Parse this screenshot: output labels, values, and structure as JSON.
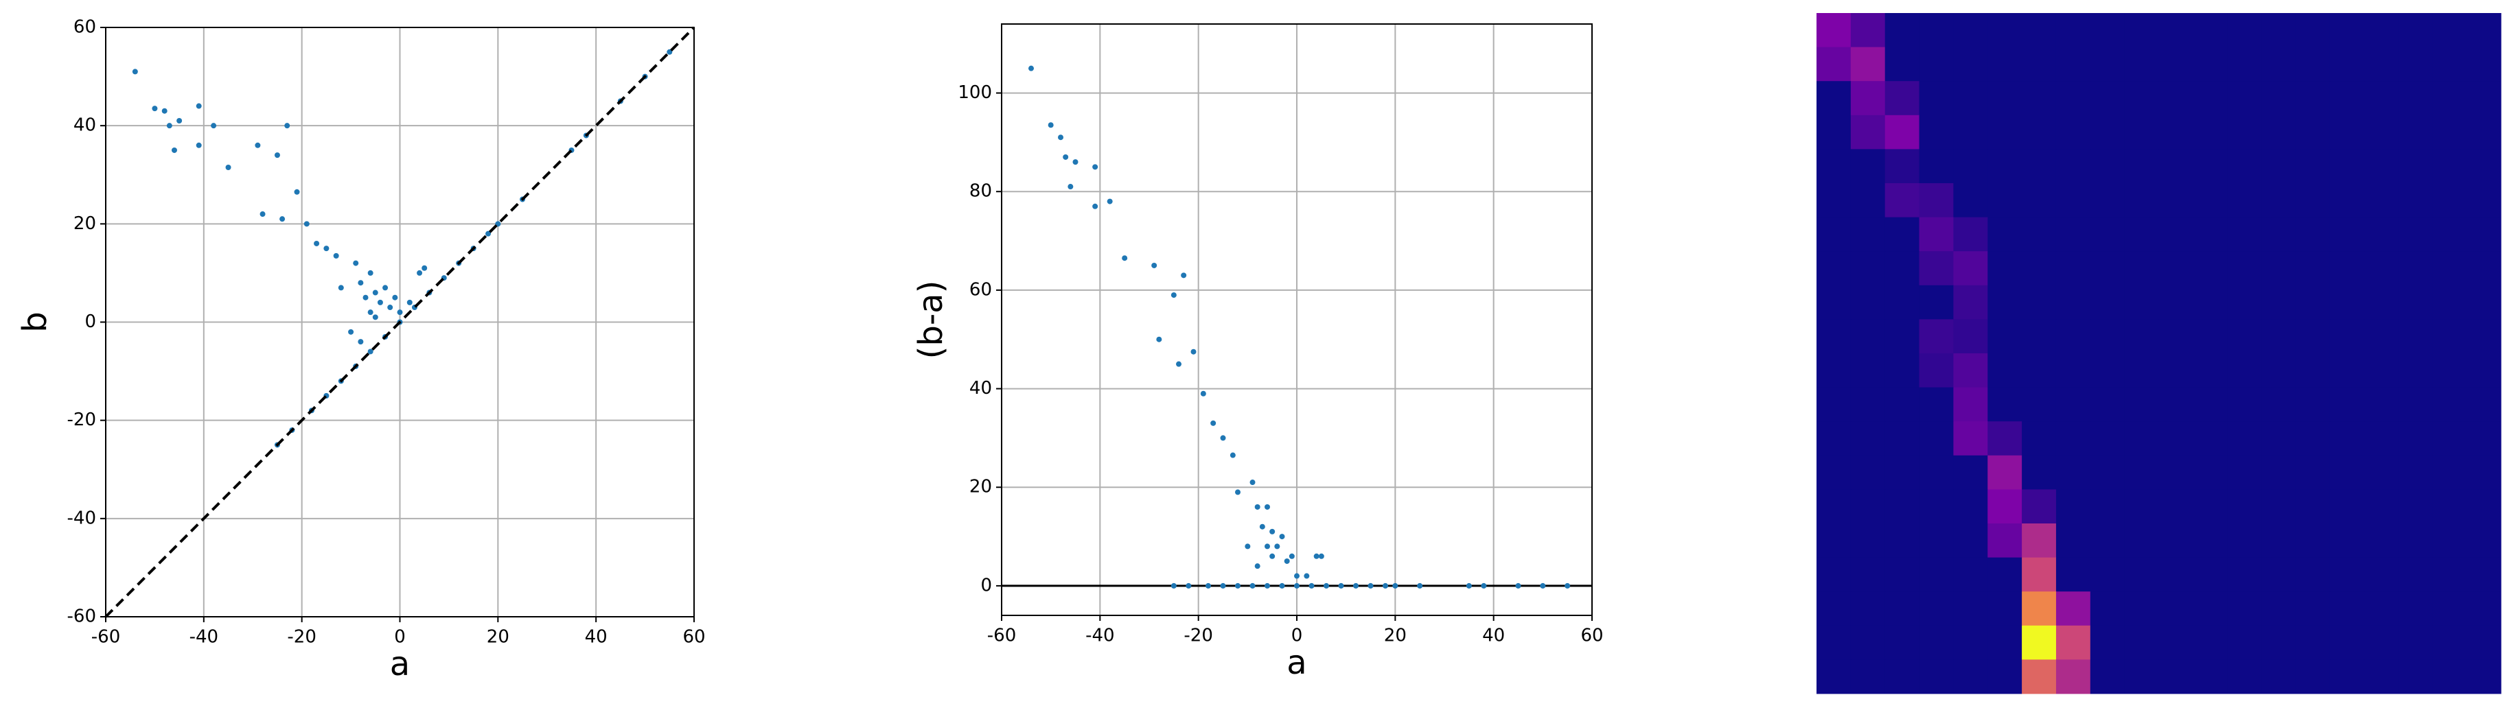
{
  "chart_data": [
    {
      "type": "scatter",
      "xlabel": "a",
      "ylabel": "b",
      "color": "#1f77b4",
      "grid": true,
      "diagonal": true,
      "xlim": [
        -60,
        60
      ],
      "ylim": [
        -60,
        60
      ],
      "xticks": [
        -60,
        -40,
        -20,
        0,
        20,
        40,
        60
      ],
      "yticks": [
        -60,
        -40,
        -20,
        0,
        20,
        40,
        60
      ],
      "x": [
        -54,
        -50,
        -48,
        -47,
        -45,
        -46,
        -41,
        -41,
        -38,
        -35,
        -29,
        -28,
        -25,
        -24,
        -23,
        -21,
        -19,
        -17,
        -15,
        -13,
        -12,
        -9,
        -8,
        -7,
        -6,
        -5,
        -4,
        -3,
        -2,
        -1,
        0,
        2,
        4,
        5,
        -10,
        -8,
        -6,
        -5,
        -25,
        -22,
        -18,
        -15,
        -12,
        -9,
        -6,
        -3,
        0,
        3,
        6,
        9,
        12,
        15,
        18,
        20,
        25,
        35,
        38,
        45,
        50,
        55
      ],
      "y": [
        51,
        43.5,
        43,
        40,
        41,
        35,
        44,
        36,
        40,
        31.5,
        36,
        22,
        34,
        21,
        40,
        26.5,
        20,
        16,
        15,
        13.5,
        7,
        12,
        8,
        5,
        10,
        6,
        4,
        7,
        3,
        5,
        2,
        4,
        10,
        11,
        -2,
        -4,
        2,
        1,
        -25,
        -22,
        -18,
        -15,
        -12,
        -9,
        -6,
        -3,
        0,
        3,
        6,
        9,
        12,
        15,
        18,
        20,
        25,
        35,
        38,
        45,
        50,
        55
      ]
    },
    {
      "type": "scatter",
      "xlabel": "a",
      "ylabel": "(b-a)",
      "color": "#1f77b4",
      "grid": true,
      "zero_line": true,
      "xlim": [
        -60,
        60
      ],
      "ylim": [
        -6,
        114
      ],
      "xticks": [
        -60,
        -40,
        -20,
        0,
        20,
        40,
        60
      ],
      "yticks": [
        0,
        20,
        40,
        60,
        80,
        100
      ],
      "x": [
        -54,
        -50,
        -48,
        -47,
        -45,
        -46,
        -41,
        -41,
        -38,
        -35,
        -29,
        -28,
        -25,
        -24,
        -23,
        -21,
        -19,
        -17,
        -15,
        -13,
        -12,
        -9,
        -8,
        -7,
        -6,
        -5,
        -4,
        -3,
        -2,
        -1,
        0,
        2,
        4,
        5,
        -10,
        -8,
        -6,
        -5,
        -25,
        -22,
        -18,
        -15,
        -12,
        -9,
        -6,
        -3,
        0,
        3,
        6,
        9,
        12,
        15,
        18,
        20,
        25,
        35,
        38,
        45,
        50,
        55
      ],
      "y": [
        105,
        93.5,
        91,
        87,
        86,
        81,
        85,
        77,
        78,
        66.5,
        65,
        50,
        59,
        45,
        63,
        47.5,
        39,
        33,
        30,
        26.5,
        19,
        21,
        16,
        12,
        16,
        11,
        8,
        10,
        5,
        6,
        2,
        2,
        6,
        6,
        8,
        4,
        8,
        6,
        0,
        0,
        0,
        0,
        0,
        0,
        0,
        0,
        0,
        0,
        0,
        0,
        0,
        0,
        0,
        0,
        0,
        0,
        0,
        0,
        0,
        0
      ]
    },
    {
      "type": "heatmap",
      "cmap": "plasma",
      "zlim": [
        0,
        1
      ],
      "z": [
        [
          0.25,
          0.15,
          0,
          0,
          0,
          0,
          0,
          0,
          0,
          0,
          0,
          0,
          0,
          0,
          0,
          0,
          0,
          0,
          0,
          0
        ],
        [
          0.2,
          0.3,
          0,
          0,
          0,
          0,
          0,
          0,
          0,
          0,
          0,
          0,
          0,
          0,
          0,
          0,
          0,
          0,
          0,
          0
        ],
        [
          0,
          0.2,
          0.1,
          0,
          0,
          0,
          0,
          0,
          0,
          0,
          0,
          0,
          0,
          0,
          0,
          0,
          0,
          0,
          0,
          0
        ],
        [
          0,
          0.15,
          0.25,
          0,
          0,
          0,
          0,
          0,
          0,
          0,
          0,
          0,
          0,
          0,
          0,
          0,
          0,
          0,
          0,
          0
        ],
        [
          0,
          0,
          0.05,
          0,
          0,
          0,
          0,
          0,
          0,
          0,
          0,
          0,
          0,
          0,
          0,
          0,
          0,
          0,
          0,
          0
        ],
        [
          0,
          0,
          0.12,
          0.1,
          0,
          0,
          0,
          0,
          0,
          0,
          0,
          0,
          0,
          0,
          0,
          0,
          0,
          0,
          0,
          0
        ],
        [
          0,
          0,
          0,
          0.15,
          0.08,
          0,
          0,
          0,
          0,
          0,
          0,
          0,
          0,
          0,
          0,
          0,
          0,
          0,
          0,
          0
        ],
        [
          0,
          0,
          0,
          0.1,
          0.15,
          0,
          0,
          0,
          0,
          0,
          0,
          0,
          0,
          0,
          0,
          0,
          0,
          0,
          0,
          0
        ],
        [
          0,
          0,
          0,
          0,
          0.1,
          0,
          0,
          0,
          0,
          0,
          0,
          0,
          0,
          0,
          0,
          0,
          0,
          0,
          0,
          0
        ],
        [
          0,
          0,
          0,
          0.1,
          0.08,
          0,
          0,
          0,
          0,
          0,
          0,
          0,
          0,
          0,
          0,
          0,
          0,
          0,
          0,
          0
        ],
        [
          0,
          0,
          0,
          0.08,
          0.15,
          0,
          0,
          0,
          0,
          0,
          0,
          0,
          0,
          0,
          0,
          0,
          0,
          0,
          0,
          0
        ],
        [
          0,
          0,
          0,
          0,
          0.18,
          0,
          0,
          0,
          0,
          0,
          0,
          0,
          0,
          0,
          0,
          0,
          0,
          0,
          0,
          0
        ],
        [
          0,
          0,
          0,
          0,
          0.2,
          0.1,
          0,
          0,
          0,
          0,
          0,
          0,
          0,
          0,
          0,
          0,
          0,
          0,
          0,
          0
        ],
        [
          0,
          0,
          0,
          0,
          0,
          0.3,
          0,
          0,
          0,
          0,
          0,
          0,
          0,
          0,
          0,
          0,
          0,
          0,
          0,
          0
        ],
        [
          0,
          0,
          0,
          0,
          0,
          0.25,
          0.1,
          0,
          0,
          0,
          0,
          0,
          0,
          0,
          0,
          0,
          0,
          0,
          0,
          0
        ],
        [
          0,
          0,
          0,
          0,
          0,
          0.2,
          0.4,
          0,
          0,
          0,
          0,
          0,
          0,
          0,
          0,
          0,
          0,
          0,
          0,
          0
        ],
        [
          0,
          0,
          0,
          0,
          0,
          0,
          0.5,
          0,
          0,
          0,
          0,
          0,
          0,
          0,
          0,
          0,
          0,
          0,
          0,
          0
        ],
        [
          0,
          0,
          0,
          0,
          0,
          0,
          0.7,
          0.3,
          0,
          0,
          0,
          0,
          0,
          0,
          0,
          0,
          0,
          0,
          0,
          0
        ],
        [
          0,
          0,
          0,
          0,
          0,
          0,
          1,
          0.5,
          0,
          0,
          0,
          0,
          0,
          0,
          0,
          0,
          0,
          0,
          0,
          0
        ],
        [
          0,
          0,
          0,
          0,
          0,
          0,
          0.6,
          0.4,
          0,
          0,
          0,
          0,
          0,
          0,
          0,
          0,
          0,
          0,
          0,
          0
        ]
      ]
    }
  ]
}
